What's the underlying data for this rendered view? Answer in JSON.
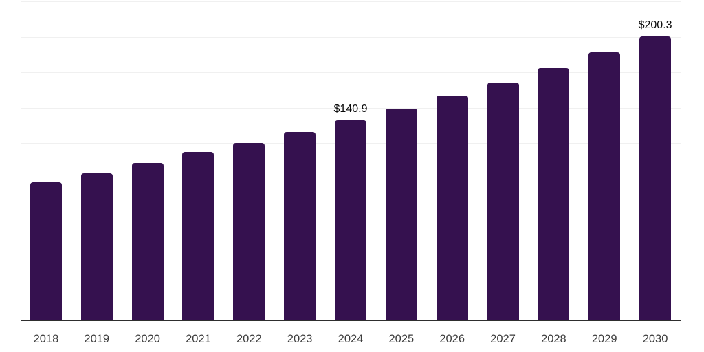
{
  "chart_data": {
    "type": "bar",
    "title": "",
    "xlabel": "",
    "ylabel": "",
    "categories": [
      "2018",
      "2019",
      "2020",
      "2021",
      "2022",
      "2023",
      "2024",
      "2025",
      "2026",
      "2027",
      "2028",
      "2029",
      "2030"
    ],
    "values": [
      97.4,
      104.0,
      110.9,
      118.6,
      125.3,
      132.8,
      140.9,
      149.4,
      158.4,
      168.0,
      178.1,
      188.9,
      200.3
    ],
    "value_labels": {
      "2024": "$140.9",
      "2030": "$200.3"
    },
    "ylim": [
      0,
      225
    ],
    "gridline_interval": 25,
    "grid": "horizontal",
    "y_tick_labels_visible": false,
    "legend": "none",
    "colors": {
      "bar": "#35114F",
      "gridline": "#F0F0F0",
      "axis_line": "#2E2E2E",
      "tick_label": "#3D3D3D",
      "value_label": "#0A0A0A",
      "background": "#FFFFFF"
    }
  }
}
